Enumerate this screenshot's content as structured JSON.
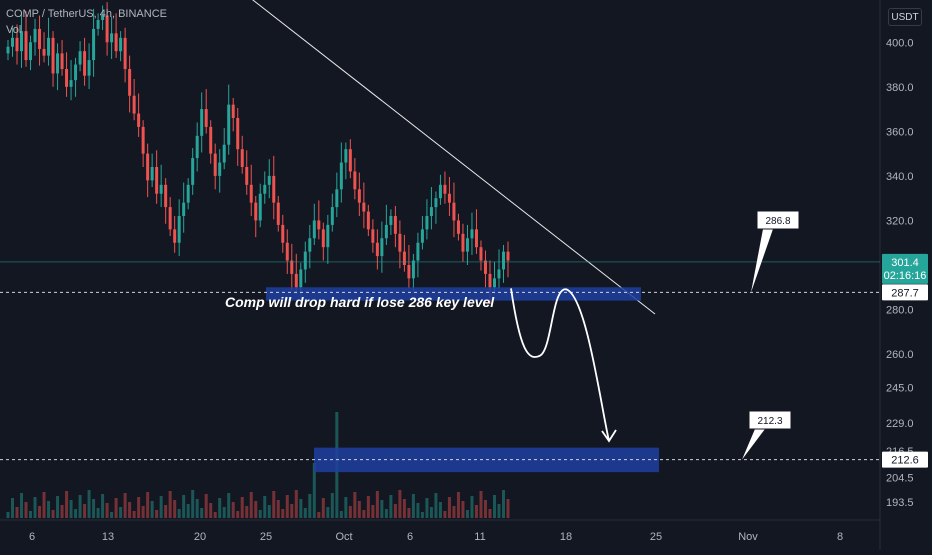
{
  "header": {
    "symbol_line": "COMP / TetherUS, 4h, BINANCE",
    "volume_label": "Vol"
  },
  "currency_button": "USDT",
  "price_tags": {
    "last_price": "301.4",
    "countdown": "02:16:16",
    "support_1": "287.7",
    "support_2": "212.6"
  },
  "callouts": {
    "first": "286.8",
    "second": "212.3"
  },
  "annotation": "Comp will drop hard if lose 286 key level",
  "colors": {
    "up": "#26a69a",
    "down": "#ef5350",
    "zone": "#1e3fa0",
    "background": "#131722",
    "text": "#b2b5be"
  },
  "chart_data": {
    "type": "candlestick",
    "y_axis_ticks": [
      "193.5",
      "204.5",
      "216.5",
      "229.0",
      "245.0",
      "260.0",
      "280.0",
      "300.0",
      "320.0",
      "340.0",
      "360.0",
      "380.0",
      "400.0"
    ],
    "x_axis_ticks": [
      "6",
      "13",
      "20",
      "25",
      "Oct",
      "6",
      "11",
      "18",
      "25",
      "Nov",
      "8"
    ],
    "y_range": [
      190,
      410
    ],
    "trendline": {
      "from_price": 420,
      "to_price": 278
    },
    "zones": [
      {
        "low": 284,
        "high": 290
      },
      {
        "low": 207,
        "high": 218
      }
    ],
    "horizontal_levels": [
      287.7,
      212.6
    ],
    "projected_path": "drop below 286 support, brief bounce toward 290, then decline to the 212 zone",
    "candles_close": [
      398,
      402,
      396,
      405,
      392,
      400,
      406,
      397,
      394,
      402,
      386,
      395,
      388,
      380,
      383,
      390,
      396,
      385,
      392,
      406,
      410,
      412,
      400,
      404,
      396,
      402,
      388,
      376,
      368,
      362,
      350,
      338,
      344,
      332,
      336,
      326,
      316,
      310,
      322,
      328,
      336,
      348,
      358,
      370,
      362,
      350,
      340,
      346,
      354,
      372,
      366,
      352,
      344,
      336,
      328,
      320,
      332,
      336,
      340,
      328,
      318,
      310,
      302,
      296,
      290,
      298,
      306,
      312,
      320,
      316,
      308,
      318,
      326,
      334,
      346,
      352,
      342,
      334,
      328,
      324,
      316,
      310,
      304,
      312,
      318,
      322,
      314,
      306,
      300,
      294,
      302,
      310,
      316,
      322,
      326,
      330,
      336,
      332,
      328,
      320,
      314,
      306,
      312,
      316,
      308,
      302,
      296,
      290,
      294,
      298,
      306,
      302
    ]
  }
}
